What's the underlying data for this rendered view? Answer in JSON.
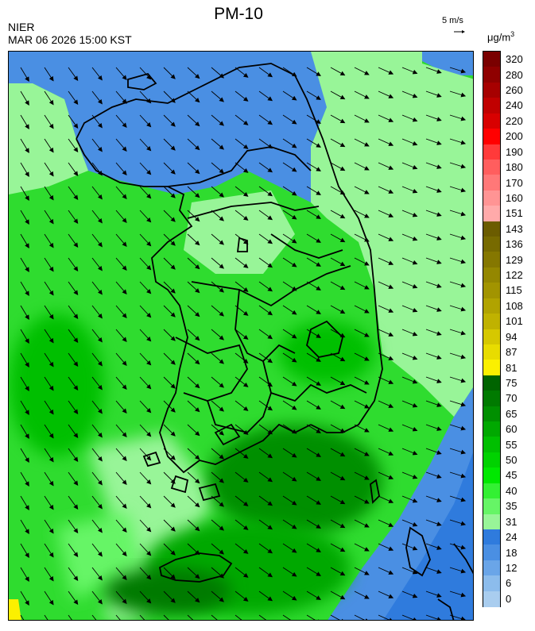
{
  "header": {
    "title": "PM-10",
    "agency": "NIER",
    "timestamp": "MAR 06 2026 15:00 KST"
  },
  "wind_reference": {
    "label": "5 m/s",
    "arrow": "right-arrow-icon"
  },
  "unit": {
    "base": "μg/m",
    "sup": "3"
  },
  "legend": [
    {
      "label": "320",
      "color": "#7a0000"
    },
    {
      "label": "280",
      "color": "#8f0000"
    },
    {
      "label": "260",
      "color": "#a60000"
    },
    {
      "label": "240",
      "color": "#c00000"
    },
    {
      "label": "220",
      "color": "#d80000"
    },
    {
      "label": "200",
      "color": "#ff0000"
    },
    {
      "label": "190",
      "color": "#ff3a3a"
    },
    {
      "label": "180",
      "color": "#ff5e5e"
    },
    {
      "label": "170",
      "color": "#ff7878"
    },
    {
      "label": "160",
      "color": "#ff9494"
    },
    {
      "label": "151",
      "color": "#ffaaaa"
    },
    {
      "label": "143",
      "color": "#6b5c00"
    },
    {
      "label": "136",
      "color": "#776a00"
    },
    {
      "label": "129",
      "color": "#857700"
    },
    {
      "label": "122",
      "color": "#948700"
    },
    {
      "label": "115",
      "color": "#a29400"
    },
    {
      "label": "108",
      "color": "#b1a300"
    },
    {
      "label": "101",
      "color": "#c0b200"
    },
    {
      "label": "94",
      "color": "#d6c800"
    },
    {
      "label": "87",
      "color": "#e8dc00"
    },
    {
      "label": "81",
      "color": "#fbf000"
    },
    {
      "label": "75",
      "color": "#006400"
    },
    {
      "label": "70",
      "color": "#007a00"
    },
    {
      "label": "65",
      "color": "#008f00"
    },
    {
      "label": "60",
      "color": "#00a800"
    },
    {
      "label": "55",
      "color": "#00bf00"
    },
    {
      "label": "50",
      "color": "#00d200"
    },
    {
      "label": "45",
      "color": "#00e800"
    },
    {
      "label": "40",
      "color": "#33f033"
    },
    {
      "label": "35",
      "color": "#66f566"
    },
    {
      "label": "31",
      "color": "#98f598"
    },
    {
      "label": "24",
      "color": "#2f7bdd"
    },
    {
      "label": "18",
      "color": "#4a8fe3"
    },
    {
      "label": "12",
      "color": "#6aa5e8"
    },
    {
      "label": "6",
      "color": "#8cbcec"
    },
    {
      "label": "0",
      "color": "#a9cdef"
    }
  ]
}
